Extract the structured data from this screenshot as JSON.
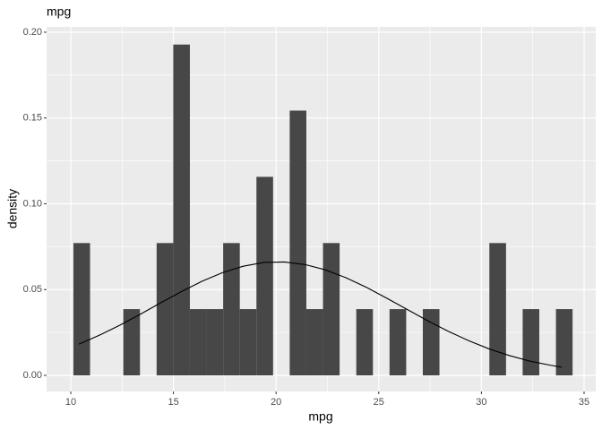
{
  "chart_data": {
    "type": "histogram",
    "title": "mpg",
    "x_label": "mpg",
    "y_label": "density",
    "bins": [
      10.129,
      10.939,
      11.75,
      12.56,
      13.37,
      14.181,
      14.991,
      15.801,
      16.612,
      17.422,
      18.232,
      19.043,
      19.853,
      20.663,
      21.473,
      22.284,
      23.094,
      23.905,
      24.715,
      25.525,
      26.336,
      27.146,
      27.956,
      28.767,
      29.577,
      30.387,
      31.198,
      32.008,
      32.818,
      33.629,
      34.439
    ],
    "values": [
      0.0771,
      0,
      0,
      0.0386,
      0,
      0.0771,
      0.1928,
      0.0386,
      0.0386,
      0.0771,
      0.0386,
      0.1157,
      0,
      0.1543,
      0.0386,
      0.0771,
      0,
      0.0386,
      0,
      0.0386,
      0,
      0.0386,
      0,
      0,
      0,
      0.0771,
      0,
      0.0386,
      0,
      0.0386
    ],
    "color": "#474747",
    "curve": {
      "color": "#000000",
      "x": [
        10.4,
        11.4,
        12.4,
        13.4,
        14.4,
        15.4,
        16.4,
        17.4,
        18.4,
        19.4,
        20.4,
        21.4,
        22.4,
        23.4,
        24.4,
        25.4,
        26.4,
        27.4,
        28.4,
        29.4,
        30.4,
        31.4,
        32.4,
        33.4,
        33.9
      ],
      "y": [
        0.0182,
        0.0234,
        0.0293,
        0.0357,
        0.0424,
        0.0489,
        0.0549,
        0.0599,
        0.0636,
        0.0658,
        0.0661,
        0.0646,
        0.0615,
        0.0569,
        0.0513,
        0.0449,
        0.0383,
        0.0317,
        0.0256,
        0.0201,
        0.0153,
        0.0114,
        0.0082,
        0.0058,
        0.0048
      ]
    },
    "xlim": [
      8.822,
      35.567
    ],
    "ylim": [
      -0.0094,
      0.2031
    ],
    "xticks": [
      10,
      15,
      20,
      25,
      30,
      35
    ],
    "yticks": [
      {
        "value": 0,
        "label": "0.00"
      },
      0.05,
      {
        "value": 0.1,
        "label": "0.10"
      },
      0.15,
      {
        "value": 0.2,
        "label": "0.20"
      }
    ],
    "grid": true
  }
}
